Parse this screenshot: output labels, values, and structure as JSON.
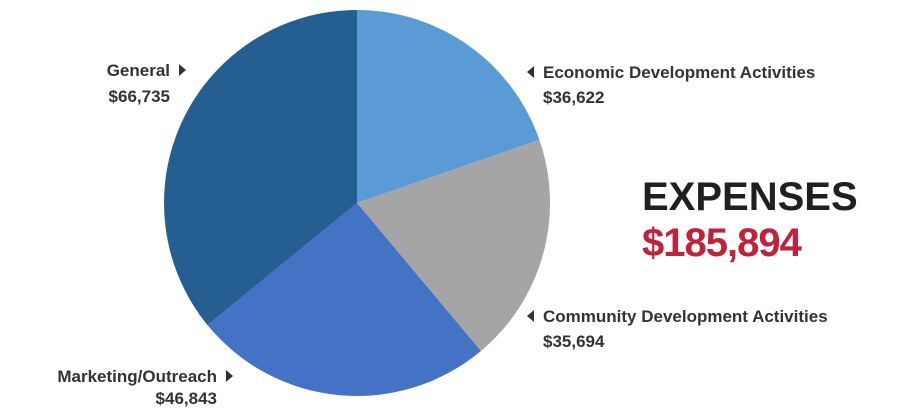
{
  "chart_data": {
    "type": "pie",
    "title": "EXPENSES",
    "total_label": "$185,894",
    "slices": [
      {
        "name": "Economic Development Activities",
        "value": 36622,
        "value_label": "$36,622",
        "color": "#5b9bd5"
      },
      {
        "name": "Community Development Activities",
        "value": 35694,
        "value_label": "$35,694",
        "color": "#a5a5a5"
      },
      {
        "name": "Marketing/Outreach",
        "value": 46843,
        "value_label": "$46,843",
        "color": "#4472c4"
      },
      {
        "name": "General",
        "value": 66735,
        "value_label": "$66,735",
        "color": "#255e91"
      }
    ]
  },
  "colors": {
    "title": "#231f20",
    "total": "#c0223b",
    "label_text": "#333333",
    "background": "#ffffff"
  }
}
